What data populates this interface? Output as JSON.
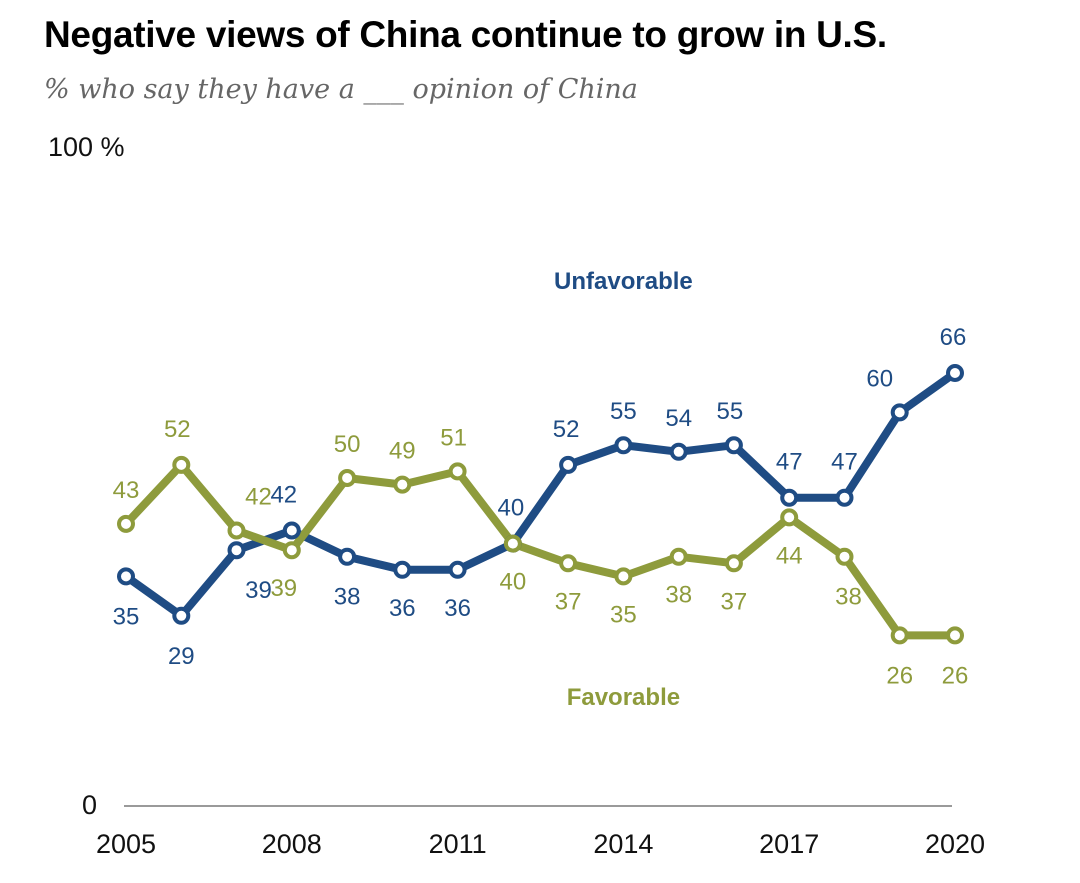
{
  "header": {
    "title": "Negative views of China continue to grow in U.S.",
    "subtitle": "% who say they have a ___ opinion of China"
  },
  "chart_data": {
    "type": "line",
    "title": "Negative views of China continue to grow in U.S.",
    "subtitle": "% who say they have a ___ opinion of China",
    "xlabel": "",
    "ylabel": "",
    "x": [
      2005,
      2006,
      2007,
      2008,
      2009,
      2010,
      2011,
      2012,
      2013,
      2014,
      2015,
      2016,
      2017,
      2018,
      2019,
      2020
    ],
    "xticks": [
      "2005",
      "2008",
      "2011",
      "2014",
      "2017",
      "2020"
    ],
    "ylim": [
      0,
      100
    ],
    "yticks": [
      "0",
      "100 %"
    ],
    "grid": false,
    "series": [
      {
        "name": "Unfavorable",
        "color": "#1f4c84",
        "values": [
          35,
          29,
          39,
          42,
          38,
          36,
          36,
          40,
          52,
          55,
          54,
          55,
          47,
          47,
          60,
          66
        ],
        "labels": [
          "35",
          "29",
          "39",
          "42",
          "38",
          "36",
          "36",
          "40",
          "52",
          "55",
          "54",
          "55",
          "47",
          "47",
          "60",
          "66"
        ]
      },
      {
        "name": "Favorable",
        "color": "#8e9b3c",
        "values": [
          43,
          52,
          42,
          39,
          50,
          49,
          51,
          40,
          37,
          35,
          38,
          37,
          44,
          38,
          26,
          26
        ],
        "labels": [
          "43",
          "52",
          "42",
          "39",
          "50",
          "49",
          "51",
          "40",
          "37",
          "35",
          "38",
          "37",
          "44",
          "38",
          "26",
          "26"
        ]
      }
    ]
  }
}
